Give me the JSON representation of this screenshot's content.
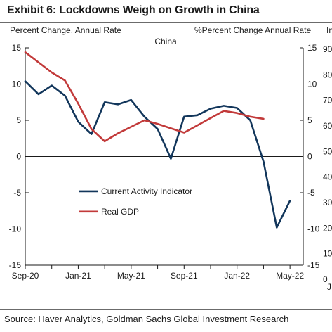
{
  "header": {
    "title": "Exhibit 6: Lockdowns Weigh on Growth in China"
  },
  "footer": {
    "source": "Source: Haver Analytics, Goldman Sachs Global Investment Research"
  },
  "colors": {
    "cai": "#12365b",
    "gdp": "#c23a3a",
    "axis": "#1a1a1a",
    "rule": "#6b6b6b"
  },
  "chart_data": {
    "type": "line",
    "title": "China",
    "ylabel_left": "Percent Change, Annual Rate",
    "ylabel_right": "%Percent Change Annual Rate",
    "ylabel_far_right": "In",
    "ylim": [
      -15,
      15
    ],
    "y_ticks": [
      -15,
      -10,
      -5,
      0,
      5,
      10,
      15
    ],
    "y_tick_labels": [
      "-15",
      "-10",
      "-5",
      "0",
      "5",
      "10",
      "15"
    ],
    "right_y_tick_labels": [
      "-15",
      "-10",
      "-5",
      "0",
      "5",
      "10",
      "15"
    ],
    "far_right_tick_labels": [
      "90",
      "80",
      "70",
      "60",
      "50",
      "40",
      "30",
      "20",
      "10",
      "0"
    ],
    "far_right_bottom_label": "J",
    "x_tick_labels": [
      "Sep-20",
      "Jan-21",
      "May-21",
      "Sep-21",
      "Jan-22",
      "May-22"
    ],
    "grid": false,
    "legend_position": "center-left",
    "series": [
      {
        "name": "Current Activity Indicator",
        "color": "#12365b",
        "points": [
          [
            "2020-09",
            10.4
          ],
          [
            "2020-10",
            8.6
          ],
          [
            "2020-11",
            9.8
          ],
          [
            "2020-12",
            8.4
          ],
          [
            "2021-01",
            4.8
          ],
          [
            "2021-02",
            3.1
          ],
          [
            "2021-03",
            7.5
          ],
          [
            "2021-04",
            7.2
          ],
          [
            "2021-05",
            7.8
          ],
          [
            "2021-06",
            5.5
          ],
          [
            "2021-07",
            3.8
          ],
          [
            "2021-08",
            -0.3
          ],
          [
            "2021-09",
            5.5
          ],
          [
            "2021-10",
            5.7
          ],
          [
            "2021-11",
            6.6
          ],
          [
            "2021-12",
            7.0
          ],
          [
            "2022-01",
            6.7
          ],
          [
            "2022-02",
            5.0
          ],
          [
            "2022-03",
            -0.7
          ],
          [
            "2022-04",
            -9.8
          ],
          [
            "2022-05",
            -6.1
          ]
        ]
      },
      {
        "name": "Real GDP",
        "color": "#c23a3a",
        "points": [
          [
            "2020-09",
            14.4
          ],
          [
            "2020-10",
            13.0
          ],
          [
            "2020-11",
            11.6
          ],
          [
            "2020-12",
            10.5
          ],
          [
            "2021-01",
            7.3
          ],
          [
            "2021-02",
            3.8
          ],
          [
            "2021-03",
            2.1
          ],
          [
            "2021-04",
            3.2
          ],
          [
            "2021-05",
            4.1
          ],
          [
            "2021-06",
            5.0
          ],
          [
            "2021-07",
            4.5
          ],
          [
            "2021-08",
            3.9
          ],
          [
            "2021-09",
            3.3
          ],
          [
            "2021-10",
            4.3
          ],
          [
            "2021-11",
            5.3
          ],
          [
            "2021-12",
            6.3
          ],
          [
            "2022-01",
            6.0
          ],
          [
            "2022-02",
            5.5
          ],
          [
            "2022-03",
            5.2
          ]
        ]
      }
    ]
  }
}
